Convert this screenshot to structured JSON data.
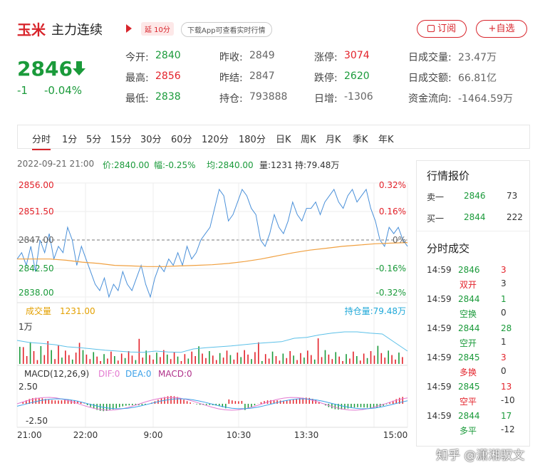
{
  "header": {
    "name": "玉米",
    "contract": "主力连续",
    "delay_badge": "延 10分",
    "download_badge": "下载App可查看实时行情",
    "subscribe_label": "订阅",
    "favorite_label": "+自选"
  },
  "quote": {
    "price": "2846",
    "change": "-1",
    "change_pct": "-0.04%",
    "stats": [
      {
        "label": "今开:",
        "value": "2840",
        "color": "green"
      },
      {
        "label": "最高:",
        "value": "2856",
        "color": "red"
      },
      {
        "label": "最低:",
        "value": "2838",
        "color": "green"
      },
      {
        "label": "昨收:",
        "value": "2849",
        "color": "gray"
      },
      {
        "label": "昨结:",
        "value": "2847",
        "color": "gray"
      },
      {
        "label": "持仓:",
        "value": "793888",
        "color": "gray"
      },
      {
        "label": "涨停:",
        "value": "3074",
        "color": "red"
      },
      {
        "label": "跌停:",
        "value": "2620",
        "color": "green"
      },
      {
        "label": "日增:",
        "value": "-1306",
        "color": "gray"
      },
      {
        "label": "日成交量:",
        "value": "23.47万",
        "color": "gray"
      },
      {
        "label": "日成交额:",
        "value": "66.81亿",
        "color": "gray"
      },
      {
        "label": "资金流向:",
        "value": "-1464.59万",
        "color": "gray"
      }
    ]
  },
  "tabs": [
    "分时",
    "1分",
    "5分",
    "15分",
    "30分",
    "60分",
    "120分",
    "180分",
    "日K",
    "周K",
    "月K",
    "季K",
    "年K"
  ],
  "active_tab": "分时",
  "info": {
    "datetime": "2022-09-21 21:00",
    "price": "价:2840.00",
    "amp": "幅:-0.25%",
    "avg": "均:2840.00",
    "vol": "量:1231",
    "hold": "持:79.48万"
  },
  "chart_data": {
    "type": "line",
    "price_axis_left": [
      "2856.00",
      "2851.50",
      "2847.00",
      "2842.50",
      "2838.00"
    ],
    "price_axis_right": [
      "0.32%",
      "0.16%",
      "0%",
      "-0.16%",
      "-0.32%"
    ],
    "ylim": [
      2838,
      2856
    ],
    "time_labels": [
      "21:00",
      "22:00",
      "9:00",
      "10:30",
      "13:30",
      "15:00"
    ],
    "price_series": [
      2844,
      2845,
      2843,
      2846,
      2842,
      2847,
      2845,
      2848,
      2844,
      2846,
      2845,
      2849,
      2847,
      2843,
      2846,
      2844,
      2842,
      2840,
      2839,
      2841,
      2838,
      2840,
      2839,
      2842,
      2840,
      2839,
      2841,
      2843,
      2840,
      2838,
      2841,
      2843,
      2842,
      2844,
      2843,
      2845,
      2843,
      2846,
      2844,
      2845,
      2847,
      2848,
      2849,
      2852,
      2855,
      2854,
      2850,
      2851,
      2853,
      2855,
      2854,
      2852,
      2851,
      2847,
      2846,
      2848,
      2851,
      2849,
      2848,
      2850,
      2853,
      2851,
      2850,
      2852,
      2852,
      2853,
      2851,
      2853,
      2854,
      2855,
      2853,
      2852,
      2854,
      2855,
      2853,
      2854,
      2855,
      2852,
      2850,
      2847,
      2846,
      2849,
      2848,
      2849,
      2847,
      2846
    ],
    "avg_series": [
      2844,
      2844,
      2844,
      2843.8,
      2843.5,
      2843.3,
      2843,
      2842.9,
      2842.8,
      2842.8,
      2842.9,
      2843,
      2843.1,
      2843.3,
      2843.6,
      2844,
      2844.5,
      2845,
      2845.4,
      2845.7,
      2846,
      2846.2,
      2846.4,
      2846.5,
      2846.6
    ],
    "volume_label": "成交量",
    "volume_value": "1231.00",
    "volume_axis": "1万",
    "open_interest_label": "持仓量:79.48万",
    "open_interest_series": [
      0.55,
      0.5,
      0.48,
      0.45,
      0.4,
      0.38,
      0.35,
      0.32,
      0.3,
      0.28,
      0.27,
      0.3,
      0.28,
      0.27,
      0.35,
      0.38,
      0.4,
      0.42,
      0.45,
      0.48,
      0.5,
      0.52,
      0.6,
      0.62,
      0.68,
      0.72,
      0.75,
      0.75,
      0.72,
      0.7,
      0.5,
      0.3
    ],
    "macd_label": "MACD(12,26,9)",
    "macd_dif": "DIF:0",
    "macd_dea": "DEA:0",
    "macd_val": "MACD:0",
    "macd_axis": [
      "2.50",
      "-2.50"
    ]
  },
  "panel": {
    "quote_title": "行情报价",
    "quote_rows": [
      {
        "label": "卖一",
        "price": "2846",
        "vol": "73"
      },
      {
        "label": "买一",
        "price": "2844",
        "vol": "222"
      }
    ],
    "trades_title": "分时成交",
    "trades": [
      {
        "time": "14:59",
        "price": "2846",
        "vol": "3",
        "type": "双开",
        "oi": "3",
        "color": "green",
        "vcolor": "red"
      },
      {
        "time": "14:59",
        "price": "2844",
        "vol": "1",
        "type": "空换",
        "oi": "0",
        "color": "green",
        "vcolor": "green"
      },
      {
        "time": "14:59",
        "price": "2844",
        "vol": "28",
        "type": "空开",
        "oi": "1",
        "color": "green",
        "vcolor": "green"
      },
      {
        "time": "14:59",
        "price": "2845",
        "vol": "3",
        "type": "多换",
        "oi": "0",
        "color": "green",
        "vcolor": "red"
      },
      {
        "time": "14:59",
        "price": "2845",
        "vol": "13",
        "type": "空平",
        "oi": "-10",
        "color": "green",
        "vcolor": "red"
      },
      {
        "time": "14:59",
        "price": "2844",
        "vol": "17",
        "type": "多平",
        "oi": "-12",
        "color": "green",
        "vcolor": "green"
      }
    ]
  },
  "watermark": "知乎 @潇湘驭文",
  "colors": {
    "up": "#e3222a",
    "down": "#1a9a3a",
    "line": "#4a90d9",
    "avg": "#f0a040"
  }
}
